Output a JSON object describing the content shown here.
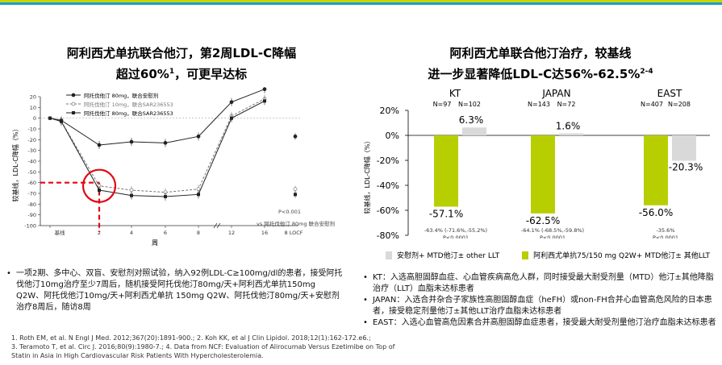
{
  "left": {
    "title_line1": "阿利西尤单抗联合他汀，第2周LDL-C降幅",
    "title_line2": "超过60%",
    "title_sup": "1",
    "title_line2_tail": "，可更早达标",
    "ylabel": "较基线，LDL-C降幅（%）",
    "xlabel": "周",
    "legend": [
      "阿托伐他汀 80mg，联合安慰剂",
      "阿托伐他汀 10mg，联合SAR236553",
      "阿托伐他汀 80mg，联合SAR236553"
    ],
    "pvalue": "P<0.001",
    "pnote": "vs 阿托伐他汀 80mg 联合安慰剂",
    "bullets": [
      "一项2期、多中心、双盲、安慰剂对照试验，纳入92例LDL-C≥100mg/dl的患者，接受阿托伐他汀10mg治疗至少7周后，随机接受阿托伐他汀80mg/天+阿利西尤单抗150mg Q2W、阿托伐他汀10mg/天+阿利西尤单抗 150mg Q2W、阿托伐他汀80mg/天+安慰剂治疗8周后，随访8周"
    ]
  },
  "right": {
    "title_line1": "阿利西尤单联合他汀治疗，较基线",
    "title_line2": "进一步显著降低LDL-C达56%-62.5%",
    "title_sup": "2-4",
    "ylabel": "较基线，LDL-C降幅（%）",
    "groups": [
      {
        "name": "KT",
        "n_placebo": "N=97",
        "n_alir": "N=102",
        "ci": "-63.4% (-71.6%,-55.2%)",
        "p": "P<0.0001"
      },
      {
        "name": "JAPAN",
        "n_placebo": "N=143",
        "n_alir": "N=72",
        "ci": "-64.1% (-68.5%,-59.8%)",
        "p": "P<0.0001"
      },
      {
        "name": "EAST",
        "n_placebo": "N=407",
        "n_alir": "N=208",
        "ci": "-35.6%",
        "p": "P<0.0001"
      }
    ],
    "legend_placebo": "安慰剂+ MTD他汀± other LLT",
    "legend_alir": "阿利西尤单抗75/150 mg Q2W+ MTD他汀± 其他LLT",
    "bullets": [
      "KT：入选高胆固醇血症、心血管疾病高危人群，同时接受最大耐受剂量（MTD）他汀±其他降脂治疗（LLT）血脂未达标患者",
      "JAPAN：入选合并杂合子家族性高胆固醇血症（heFH）或non-FH合并心血管高危风险的日本患者，接受稳定剂量他汀±其他LLT治疗血脂未达标患者",
      "EAST：入选心血管高危因素合并高胆固醇血症患者，接受最大耐受剂量他汀治疗血脂未达标患者"
    ]
  },
  "references": [
    "1. Roth EM, et al. N Engl J Med. 2012;367(20):1891-900.; 2. Koh KK, et al J Clin Lipidol. 2018;12(1):162-172.e6.;",
    "3. Teramoto T, et al. Circ J. 2016;80(9):1980-7.; 4. Data from NCF: Evaluation of Alirocumab Versus Ezetimibe on Top of",
    "Statin in Asia in High Cardiovascular Risk Patients With Hypercholesterolemia."
  ],
  "colors": {
    "placebo": "#d9d9d9",
    "alir": "#b7cf00",
    "highlight": "#e30613"
  },
  "chart_data": [
    {
      "type": "line",
      "x_ticks": [
        "基线",
        "2",
        "4",
        "6",
        "8",
        "12",
        "16",
        "8 LOCF"
      ],
      "x_weeks": [
        0,
        2,
        4,
        6,
        8,
        12,
        16
      ],
      "y_ticks": [
        20,
        10,
        0,
        -10,
        -20,
        -30,
        -40,
        -50,
        -60,
        -70,
        -80,
        -90,
        -100
      ],
      "ylim": [
        -100,
        20
      ],
      "series": [
        {
          "name": "阿托伐他汀 80mg，联合安慰剂",
          "x": [
            0,
            1,
            2,
            4,
            6,
            8,
            12,
            16
          ],
          "y": [
            0,
            -2,
            -25,
            -22,
            -23,
            -17,
            15,
            27
          ],
          "locf": -17
        },
        {
          "name": "阿托伐他汀 10mg，联合SAR236553",
          "x": [
            0,
            1,
            2,
            4,
            6,
            8,
            12,
            16
          ],
          "y": [
            0,
            -3,
            -63,
            -67,
            -69,
            -66,
            2,
            18
          ],
          "locf": -66
        },
        {
          "name": "阿托伐他汀 80mg，联合SAR236553",
          "x": [
            0,
            1,
            2,
            4,
            6,
            8,
            12,
            16
          ],
          "y": [
            0,
            -3,
            -67,
            -72,
            -73,
            -71,
            0,
            16
          ],
          "locf": -71
        }
      ],
      "reference_y": -60,
      "highlight_week": 2
    },
    {
      "type": "bar",
      "categories": [
        "KT",
        "JAPAN",
        "EAST"
      ],
      "y_ticks": [
        "20%",
        "0%",
        "-20%",
        "-40%",
        "-60%",
        "-80%"
      ],
      "ylim": [
        -80,
        20
      ],
      "series": [
        {
          "name": "安慰剂+ MTD他汀± other LLT",
          "values": [
            6.3,
            1.6,
            -20.3
          ],
          "labels": [
            "6.3%",
            "1.6%",
            "-20.3%"
          ]
        },
        {
          "name": "阿利西尤单抗75/150 mg Q2W+ MTD他汀± 其他LLT",
          "values": [
            -57.1,
            -62.5,
            -56.0
          ],
          "labels": [
            "-57.1%",
            "-62.5%",
            "-56.0%"
          ]
        }
      ]
    }
  ]
}
